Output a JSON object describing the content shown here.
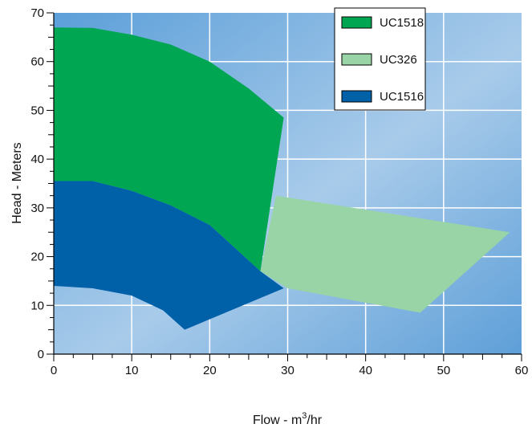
{
  "chart_data": {
    "type": "area",
    "xlabel": "Flow - m³/hr",
    "ylabel": "Head - Meters",
    "xlim": [
      0,
      60
    ],
    "ylim": [
      0,
      70
    ],
    "x_ticks": [
      0,
      10,
      20,
      30,
      40,
      50,
      60
    ],
    "y_ticks": [
      0,
      10,
      20,
      30,
      40,
      50,
      60,
      70
    ],
    "grid": true,
    "legend_position": "top-right",
    "series": [
      {
        "name": "UC1518",
        "color": "#00a651",
        "upper": [
          [
            0,
            67.0
          ],
          [
            5,
            66.9
          ],
          [
            10,
            65.5
          ],
          [
            15,
            63.5
          ],
          [
            20,
            60.0
          ],
          [
            25,
            54.5
          ],
          [
            29.5,
            48.5
          ]
        ],
        "lower": [
          [
            0,
            35.5
          ],
          [
            5,
            35.5
          ],
          [
            10,
            33.5
          ],
          [
            15,
            30.5
          ],
          [
            20,
            26.5
          ],
          [
            26.5,
            17.0
          ]
        ],
        "right_edge": [
          [
            29.5,
            48.5
          ],
          [
            26.5,
            17.0
          ]
        ]
      },
      {
        "name": "UC326",
        "color": "#98d4a6",
        "outline": [
          [
            28.5,
            32.5
          ],
          [
            58.5,
            25.0
          ],
          [
            47.0,
            8.5
          ],
          [
            30.0,
            13.5
          ],
          [
            26.5,
            17.0
          ]
        ]
      },
      {
        "name": "UC1516",
        "color": "#0060a8",
        "upper": [
          [
            0,
            35.5
          ],
          [
            5,
            35.5
          ],
          [
            10,
            33.5
          ],
          [
            15,
            30.5
          ],
          [
            20,
            26.5
          ],
          [
            26.5,
            17.0
          ],
          [
            29.5,
            13.5
          ]
        ],
        "lower": [
          [
            0,
            14.0
          ],
          [
            5,
            13.5
          ],
          [
            10,
            12.0
          ],
          [
            14,
            9.0
          ],
          [
            16.8,
            5.0
          ]
        ],
        "right_edge": [
          [
            29.5,
            13.5
          ],
          [
            16.8,
            5.0
          ]
        ]
      }
    ]
  }
}
